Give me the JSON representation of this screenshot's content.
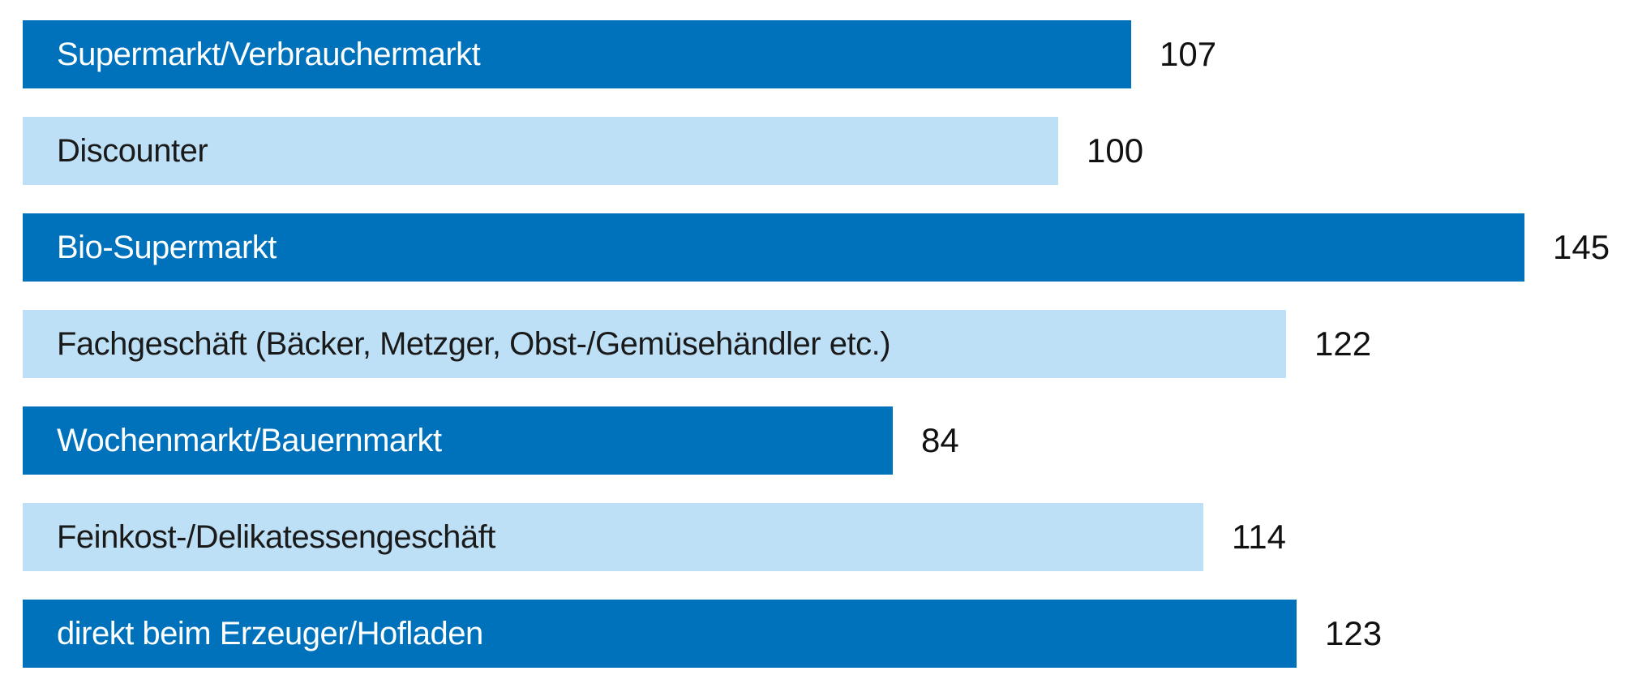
{
  "chart_data": {
    "type": "bar",
    "orientation": "horizontal",
    "title": "",
    "xlabel": "",
    "ylabel": "",
    "xlim": [
      0,
      145
    ],
    "grid": false,
    "legend": false,
    "categories": [
      "Supermarkt/Verbrauchermarkt",
      "Discounter",
      "Bio-Supermarkt",
      "Fachgeschäft (Bäcker, Metzger, Obst-/Gemüsehändler etc.)",
      "Wochenmarkt/Bauernmarkt",
      "Feinkost-/Delikatessengeschäft",
      "direkt beim Erzeuger/Hofladen"
    ],
    "values": [
      107,
      100,
      145,
      122,
      84,
      114,
      123
    ],
    "value_labels": [
      "107",
      "100",
      "145",
      "122",
      "84",
      "114",
      "123"
    ],
    "bar_styles": [
      "dark",
      "light",
      "dark",
      "light",
      "dark",
      "light",
      "dark"
    ],
    "label_position": "inside-left",
    "value_label_position": "right-of-bar"
  },
  "colors": {
    "dark_blue": "#0072BC",
    "light_blue": "#BDE0F7",
    "text_on_dark": "#FFFFFF",
    "text_on_light": "#1A1A1A",
    "value_text": "#111111",
    "background": "#FFFFFF"
  }
}
